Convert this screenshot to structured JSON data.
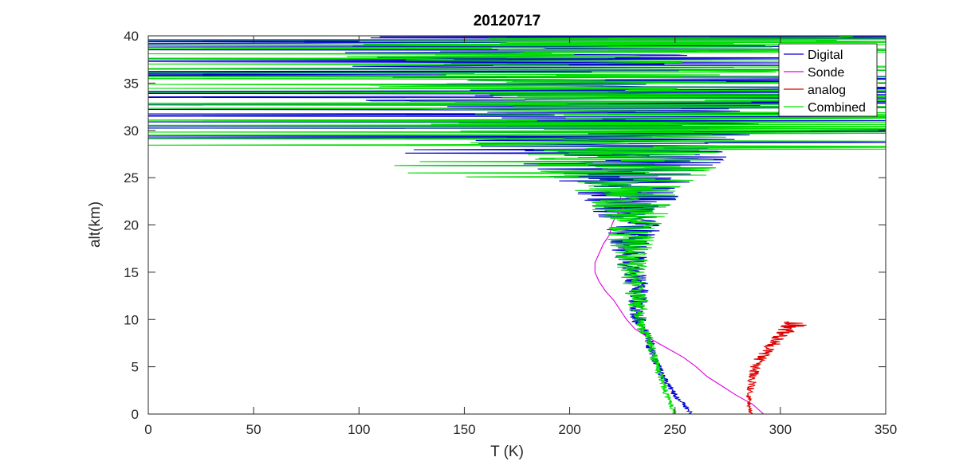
{
  "chart_data": {
    "type": "line",
    "title": "20120717",
    "xlabel": "T (K)",
    "ylabel": "alt(km)",
    "xlim": [
      0,
      350
    ],
    "ylim": [
      0,
      40
    ],
    "xticks": [
      0,
      50,
      100,
      150,
      200,
      250,
      300,
      350
    ],
    "yticks": [
      0,
      5,
      10,
      15,
      20,
      25,
      30,
      35,
      40
    ],
    "grid": false,
    "legend_position": "top-right",
    "series": [
      {
        "name": "Digital",
        "color": "#0000cc",
        "profile": {
          "alt": [
            0,
            2,
            4,
            6,
            8,
            10,
            12,
            14,
            16,
            18,
            20,
            22,
            24,
            26,
            28,
            30,
            32,
            34,
            36,
            38,
            40
          ],
          "T": [
            258,
            250,
            244,
            240,
            237,
            233,
            232,
            232,
            229,
            229,
            230,
            229,
            229,
            224,
            220,
            215,
            210,
            205,
            205,
            210,
            215
          ],
          "noise_amp": [
            1,
            1.5,
            2,
            2,
            2.5,
            4,
            5,
            6,
            8,
            11,
            14,
            20,
            28,
            45,
            60,
            80,
            95,
            110,
            120,
            120,
            120
          ]
        }
      },
      {
        "name": "Sonde",
        "color": "#dd00dd",
        "alt": [
          0,
          1,
          2,
          3,
          4,
          5,
          6,
          7,
          8,
          9,
          10,
          11,
          12,
          13,
          14,
          15,
          16,
          17,
          18,
          19,
          20,
          21,
          22,
          23
        ],
        "T": [
          292,
          287,
          279,
          272,
          265,
          260,
          254,
          246,
          238,
          231,
          227,
          224,
          221,
          217,
          214,
          212,
          212,
          214,
          216,
          219,
          220,
          222,
          226,
          224
        ]
      },
      {
        "name": "analog",
        "color": "#dd0000",
        "profile": {
          "alt": [
            0,
            1,
            2,
            3,
            4,
            5,
            6,
            7,
            8,
            9,
            9.8
          ],
          "T": [
            286,
            285,
            285,
            286,
            287,
            288,
            291,
            295,
            299,
            304,
            308
          ],
          "noise_amp": [
            1,
            1,
            1.5,
            2,
            2,
            3,
            3,
            3,
            4,
            5,
            8
          ]
        }
      },
      {
        "name": "Combined",
        "color": "#00dd00",
        "profile": {
          "alt": [
            0,
            2,
            4,
            6,
            8,
            10,
            12,
            14,
            16,
            18,
            20,
            22,
            24,
            26,
            28,
            30,
            32,
            34,
            36,
            38,
            40
          ],
          "T": [
            250,
            246,
            243,
            240,
            237,
            233,
            232,
            231,
            229,
            229,
            230,
            229,
            229,
            226,
            220,
            215,
            210,
            205,
            205,
            210,
            215
          ],
          "noise_amp": [
            1,
            1.5,
            2,
            2,
            2.5,
            4,
            5,
            6,
            8,
            11,
            14,
            20,
            28,
            45,
            60,
            80,
            95,
            110,
            120,
            120,
            120
          ]
        }
      }
    ]
  }
}
